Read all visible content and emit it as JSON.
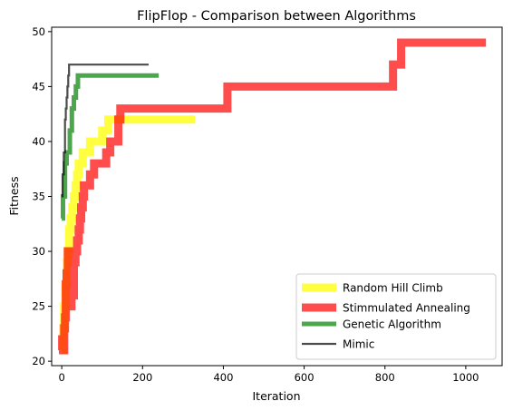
{
  "chart_data": {
    "type": "line",
    "title": "FlipFlop - Comparison between Algorithms",
    "xlabel": "Iteration",
    "ylabel": "Fitness",
    "xlim": [
      -25,
      1090
    ],
    "ylim": [
      19.6,
      50.4
    ],
    "xticks": [
      0,
      200,
      400,
      600,
      800,
      1000
    ],
    "yticks": [
      20,
      25,
      30,
      35,
      40,
      45,
      50
    ],
    "grid": false,
    "legend_position": "lower-right",
    "series": [
      {
        "name": "Random Hill Climb",
        "color": "#ffff00",
        "alpha": 0.75,
        "linewidth": "thick",
        "x": [
          0,
          3,
          3,
          6,
          6,
          9,
          9,
          12,
          12,
          15,
          15,
          18,
          18,
          22,
          22,
          26,
          26,
          30,
          30,
          34,
          34,
          38,
          38,
          42,
          42,
          46,
          46,
          52,
          52,
          60,
          60,
          70,
          70,
          85,
          85,
          100,
          100,
          115,
          115,
          330
        ],
        "y": [
          21,
          21,
          23,
          23,
          25,
          25,
          27,
          27,
          29,
          29,
          30,
          30,
          32,
          32,
          33,
          33,
          34,
          34,
          35,
          35,
          36,
          36,
          37,
          37,
          38,
          38,
          38,
          38,
          39,
          39,
          39,
          39,
          40,
          40,
          40,
          40,
          41,
          41,
          42,
          42
        ]
      },
      {
        "name": "Stimmulated Annealing",
        "color": "#ff0000",
        "alpha": 0.7,
        "linewidth": "thick",
        "x": [
          0,
          1,
          1,
          3,
          3,
          6,
          6,
          8,
          8,
          10,
          10,
          12,
          12,
          15,
          15,
          18,
          18,
          22,
          22,
          24,
          24,
          27,
          27,
          30,
          30,
          34,
          34,
          38,
          38,
          42,
          42,
          45,
          45,
          48,
          48,
          52,
          52,
          55,
          55,
          60,
          60,
          65,
          65,
          70,
          70,
          75,
          75,
          80,
          80,
          85,
          85,
          90,
          90,
          110,
          110,
          120,
          120,
          140,
          140,
          145,
          145,
          410,
          410,
          820,
          820,
          840,
          840,
          1050
        ],
        "y": [
          21,
          21,
          22,
          22,
          21,
          21,
          23,
          23,
          24,
          24,
          27,
          27,
          28,
          28,
          30,
          30,
          28,
          28,
          25,
          25,
          28,
          28,
          26,
          26,
          29,
          29,
          30,
          30,
          31,
          31,
          32,
          32,
          33,
          33,
          34,
          34,
          35,
          35,
          36,
          36,
          36,
          36,
          36,
          36,
          37,
          37,
          37,
          37,
          38,
          38,
          38,
          38,
          38,
          38,
          39,
          39,
          40,
          40,
          42,
          42,
          43,
          43,
          45,
          45,
          47,
          47,
          49,
          49
        ]
      },
      {
        "name": "Genetic Algorithm",
        "color": "#008000",
        "alpha": 0.7,
        "linewidth": "medium",
        "x": [
          0,
          3,
          3,
          8,
          8,
          12,
          12,
          20,
          20,
          25,
          25,
          30,
          30,
          35,
          35,
          40,
          40,
          240
        ],
        "y": [
          33,
          33,
          35,
          35,
          38,
          38,
          39,
          39,
          41,
          41,
          43,
          43,
          44,
          44,
          45,
          45,
          46,
          46
        ]
      },
      {
        "name": "Mimic",
        "color": "#000000",
        "alpha": 0.7,
        "linewidth": "thin",
        "x": [
          0,
          2,
          2,
          5,
          5,
          8,
          8,
          10,
          10,
          12,
          12,
          14,
          14,
          16,
          16,
          18,
          18,
          20,
          20,
          215
        ],
        "y": [
          35,
          35,
          37,
          37,
          39,
          39,
          42,
          42,
          43,
          43,
          44,
          44,
          45,
          45,
          46,
          46,
          47,
          47,
          47,
          47
        ]
      }
    ]
  }
}
